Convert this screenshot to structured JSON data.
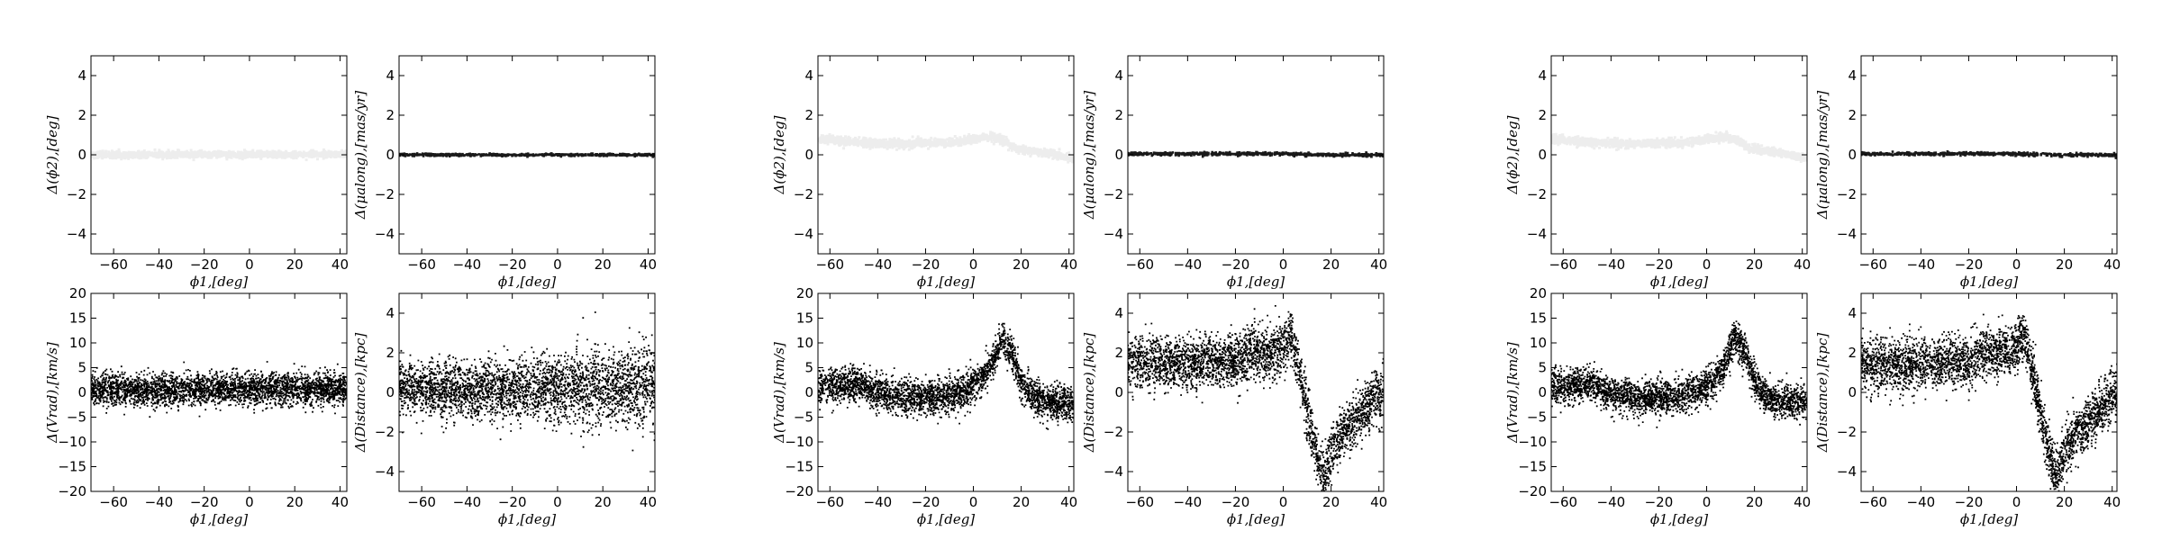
{
  "chart_data": [
    {
      "type": "scatter",
      "panel": "1-1",
      "xlabel": "ϕ1,[deg]",
      "ylabel": "Δ(ϕ2),[deg]",
      "xlim": [
        -70,
        43
      ],
      "ylim": [
        -5,
        5
      ],
      "xticks": [
        -60,
        -40,
        -20,
        0,
        20,
        40
      ],
      "yticks": [
        -4,
        -2,
        0,
        2,
        4
      ],
      "style": "faint",
      "curve": [
        [
          -70,
          0
        ],
        [
          -40,
          0
        ],
        [
          -20,
          0.02
        ],
        [
          0,
          0
        ],
        [
          20,
          0.02
        ],
        [
          43,
          0.05
        ]
      ],
      "spread": 0.08
    },
    {
      "type": "scatter",
      "panel": "1-2",
      "xlabel": "ϕ1,[deg]",
      "ylabel": "Δ(μalong),[mas/yr]",
      "xlim": [
        -70,
        43
      ],
      "ylim": [
        -5,
        5
      ],
      "xticks": [
        -60,
        -40,
        -20,
        0,
        20,
        40
      ],
      "yticks": [
        -4,
        -2,
        0,
        2,
        4
      ],
      "style": "solid",
      "curve": [
        [
          -70,
          0
        ],
        [
          43,
          0
        ]
      ],
      "spread": 0.03
    },
    {
      "type": "scatter",
      "panel": "1-3",
      "xlabel": "ϕ1,[deg]",
      "ylabel": "Δ(Vrad),[km/s]",
      "xlim": [
        -70,
        43
      ],
      "ylim": [
        -20,
        20
      ],
      "xticks": [
        -60,
        -40,
        -20,
        0,
        20,
        40
      ],
      "yticks": [
        -20,
        -15,
        -10,
        -5,
        0,
        5,
        10,
        15,
        20
      ],
      "style": "dense",
      "curve": [
        [
          -70,
          0.5
        ],
        [
          -40,
          0.5
        ],
        [
          0,
          0.6
        ],
        [
          43,
          0.8
        ]
      ],
      "spread": 1.6
    },
    {
      "type": "scatter",
      "panel": "1-4",
      "xlabel": "ϕ1,[deg]",
      "ylabel": "Δ(Distance),[kpc]",
      "xlim": [
        -70,
        43
      ],
      "ylim": [
        -5,
        5
      ],
      "xticks": [
        -60,
        -40,
        -20,
        0,
        20,
        40
      ],
      "yticks": [
        -4,
        -2,
        0,
        2,
        4
      ],
      "style": "dense",
      "curve": [
        [
          -70,
          0.3
        ],
        [
          -40,
          0.1
        ],
        [
          0,
          0.2
        ],
        [
          43,
          0.3
        ]
      ],
      "spread": 0.8
    },
    {
      "type": "scatter",
      "panel": "2-1",
      "xlabel": "ϕ1,[deg]",
      "ylabel": "Δ(ϕ2),[deg]",
      "xlim": [
        -65,
        42
      ],
      "ylim": [
        -5,
        5
      ],
      "xticks": [
        -60,
        -40,
        -20,
        0,
        20,
        40
      ],
      "yticks": [
        -4,
        -2,
        0,
        2,
        4
      ],
      "style": "faint",
      "curve": [
        [
          -65,
          0.8
        ],
        [
          -55,
          0.7
        ],
        [
          -45,
          0.6
        ],
        [
          -30,
          0.55
        ],
        [
          -20,
          0.6
        ],
        [
          -10,
          0.6
        ],
        [
          0,
          0.8
        ],
        [
          8,
          0.9
        ],
        [
          13,
          0.7
        ],
        [
          18,
          0.3
        ],
        [
          25,
          0.2
        ],
        [
          35,
          0
        ],
        [
          42,
          -0.2
        ]
      ],
      "spread": 0.1
    },
    {
      "type": "scatter",
      "panel": "2-2",
      "xlabel": "ϕ1,[deg]",
      "ylabel": "Δ(μalong),[mas/yr]",
      "xlim": [
        -65,
        42
      ],
      "ylim": [
        -5,
        5
      ],
      "xticks": [
        -60,
        -40,
        -20,
        0,
        20,
        40
      ],
      "yticks": [
        -4,
        -2,
        0,
        2,
        4
      ],
      "style": "solid",
      "curve": [
        [
          -65,
          0.05
        ],
        [
          -20,
          0.05
        ],
        [
          0,
          0.05
        ],
        [
          15,
          0
        ],
        [
          30,
          0
        ],
        [
          42,
          -0.02
        ]
      ],
      "spread": 0.04
    },
    {
      "type": "scatter",
      "panel": "2-3",
      "xlabel": "ϕ1,[deg]",
      "ylabel": "Δ(Vrad),[km/s]",
      "xlim": [
        -65,
        42
      ],
      "ylim": [
        -20,
        20
      ],
      "xticks": [
        -60,
        -40,
        -20,
        0,
        20,
        40
      ],
      "yticks": [
        -20,
        -15,
        -10,
        -5,
        0,
        5,
        10,
        15,
        20
      ],
      "style": "dense",
      "curve": [
        [
          -65,
          1
        ],
        [
          -55,
          1.5
        ],
        [
          -48,
          2
        ],
        [
          -42,
          0
        ],
        [
          -30,
          -1
        ],
        [
          -15,
          -1
        ],
        [
          -5,
          0
        ],
        [
          2,
          2
        ],
        [
          7,
          5
        ],
        [
          12,
          11
        ],
        [
          16,
          8
        ],
        [
          20,
          2
        ],
        [
          25,
          -1
        ],
        [
          30,
          -2
        ],
        [
          42,
          -2
        ]
      ],
      "spread": 1.7
    },
    {
      "type": "scatter",
      "panel": "2-4",
      "xlabel": "ϕ1,[deg]",
      "ylabel": "Δ(Distance),[kpc]",
      "xlim": [
        -65,
        42
      ],
      "ylim": [
        -5,
        5
      ],
      "xticks": [
        -60,
        -40,
        -20,
        0,
        20,
        40
      ],
      "yticks": [
        -4,
        -2,
        0,
        2,
        4
      ],
      "style": "dense",
      "curve": [
        [
          -65,
          1.5
        ],
        [
          -45,
          1.4
        ],
        [
          -30,
          1.6
        ],
        [
          -20,
          1.5
        ],
        [
          -15,
          2
        ],
        [
          -5,
          2
        ],
        [
          0,
          2.2
        ],
        [
          3,
          3
        ],
        [
          6,
          1.5
        ],
        [
          10,
          -1
        ],
        [
          14,
          -3.2
        ],
        [
          17,
          -4.2
        ],
        [
          20,
          -3
        ],
        [
          25,
          -2
        ],
        [
          30,
          -1.5
        ],
        [
          35,
          -0.8
        ],
        [
          42,
          0
        ]
      ],
      "spread": 0.65
    },
    {
      "type": "scatter",
      "panel": "3-1",
      "xlabel": "ϕ1,[deg]",
      "ylabel": "Δ(ϕ2),[deg]",
      "xlim": [
        -65,
        42
      ],
      "ylim": [
        -5,
        5
      ],
      "xticks": [
        -60,
        -40,
        -20,
        0,
        20,
        40
      ],
      "yticks": [
        -4,
        -2,
        0,
        2,
        4
      ],
      "style": "faint",
      "curve": [
        [
          -65,
          0.8
        ],
        [
          -55,
          0.7
        ],
        [
          -45,
          0.6
        ],
        [
          -30,
          0.55
        ],
        [
          -20,
          0.6
        ],
        [
          -10,
          0.6
        ],
        [
          0,
          0.8
        ],
        [
          8,
          0.9
        ],
        [
          13,
          0.7
        ],
        [
          18,
          0.3
        ],
        [
          25,
          0.2
        ],
        [
          35,
          0
        ],
        [
          42,
          -0.2
        ]
      ],
      "spread": 0.1
    },
    {
      "type": "scatter",
      "panel": "3-2",
      "xlabel": "ϕ1,[deg]",
      "ylabel": "Δ(μalong),[mas/yr]",
      "xlim": [
        -65,
        42
      ],
      "ylim": [
        -5,
        5
      ],
      "xticks": [
        -60,
        -40,
        -20,
        0,
        20,
        40
      ],
      "yticks": [
        -4,
        -2,
        0,
        2,
        4
      ],
      "style": "solid",
      "curve": [
        [
          -65,
          0.05
        ],
        [
          -20,
          0.05
        ],
        [
          0,
          0.05
        ],
        [
          15,
          0
        ],
        [
          30,
          0
        ],
        [
          42,
          -0.02
        ]
      ],
      "spread": 0.04
    },
    {
      "type": "scatter",
      "panel": "3-3",
      "xlabel": "ϕ1,[deg]",
      "ylabel": "Δ(Vrad),[km/s]",
      "xlim": [
        -65,
        42
      ],
      "ylim": [
        -20,
        20
      ],
      "xticks": [
        -60,
        -40,
        -20,
        0,
        20,
        40
      ],
      "yticks": [
        -20,
        -15,
        -10,
        -5,
        0,
        5,
        10,
        15,
        20
      ],
      "style": "dense",
      "curve": [
        [
          -65,
          1
        ],
        [
          -55,
          1.5
        ],
        [
          -48,
          2
        ],
        [
          -42,
          0
        ],
        [
          -30,
          -1
        ],
        [
          -15,
          -1
        ],
        [
          -5,
          0
        ],
        [
          2,
          2
        ],
        [
          7,
          5
        ],
        [
          12,
          11
        ],
        [
          16,
          8
        ],
        [
          20,
          2
        ],
        [
          25,
          -1
        ],
        [
          30,
          -2
        ],
        [
          42,
          -2
        ]
      ],
      "spread": 1.7
    },
    {
      "type": "scatter",
      "panel": "3-4",
      "xlabel": "ϕ1,[deg]",
      "ylabel": "Δ(Distance),[kpc]",
      "xlim": [
        -65,
        42
      ],
      "ylim": [
        -5,
        5
      ],
      "xticks": [
        -60,
        -40,
        -20,
        0,
        20,
        40
      ],
      "yticks": [
        -4,
        -2,
        0,
        2,
        4
      ],
      "style": "dense",
      "curve": [
        [
          -65,
          1.5
        ],
        [
          -45,
          1.4
        ],
        [
          -30,
          1.6
        ],
        [
          -20,
          1.5
        ],
        [
          -15,
          2
        ],
        [
          -5,
          2
        ],
        [
          0,
          2.2
        ],
        [
          3,
          3
        ],
        [
          6,
          1.5
        ],
        [
          10,
          -1
        ],
        [
          14,
          -3.2
        ],
        [
          17,
          -4.2
        ],
        [
          20,
          -3
        ],
        [
          25,
          -2
        ],
        [
          30,
          -1.5
        ],
        [
          35,
          -0.8
        ],
        [
          42,
          0
        ]
      ],
      "spread": 0.65
    }
  ]
}
